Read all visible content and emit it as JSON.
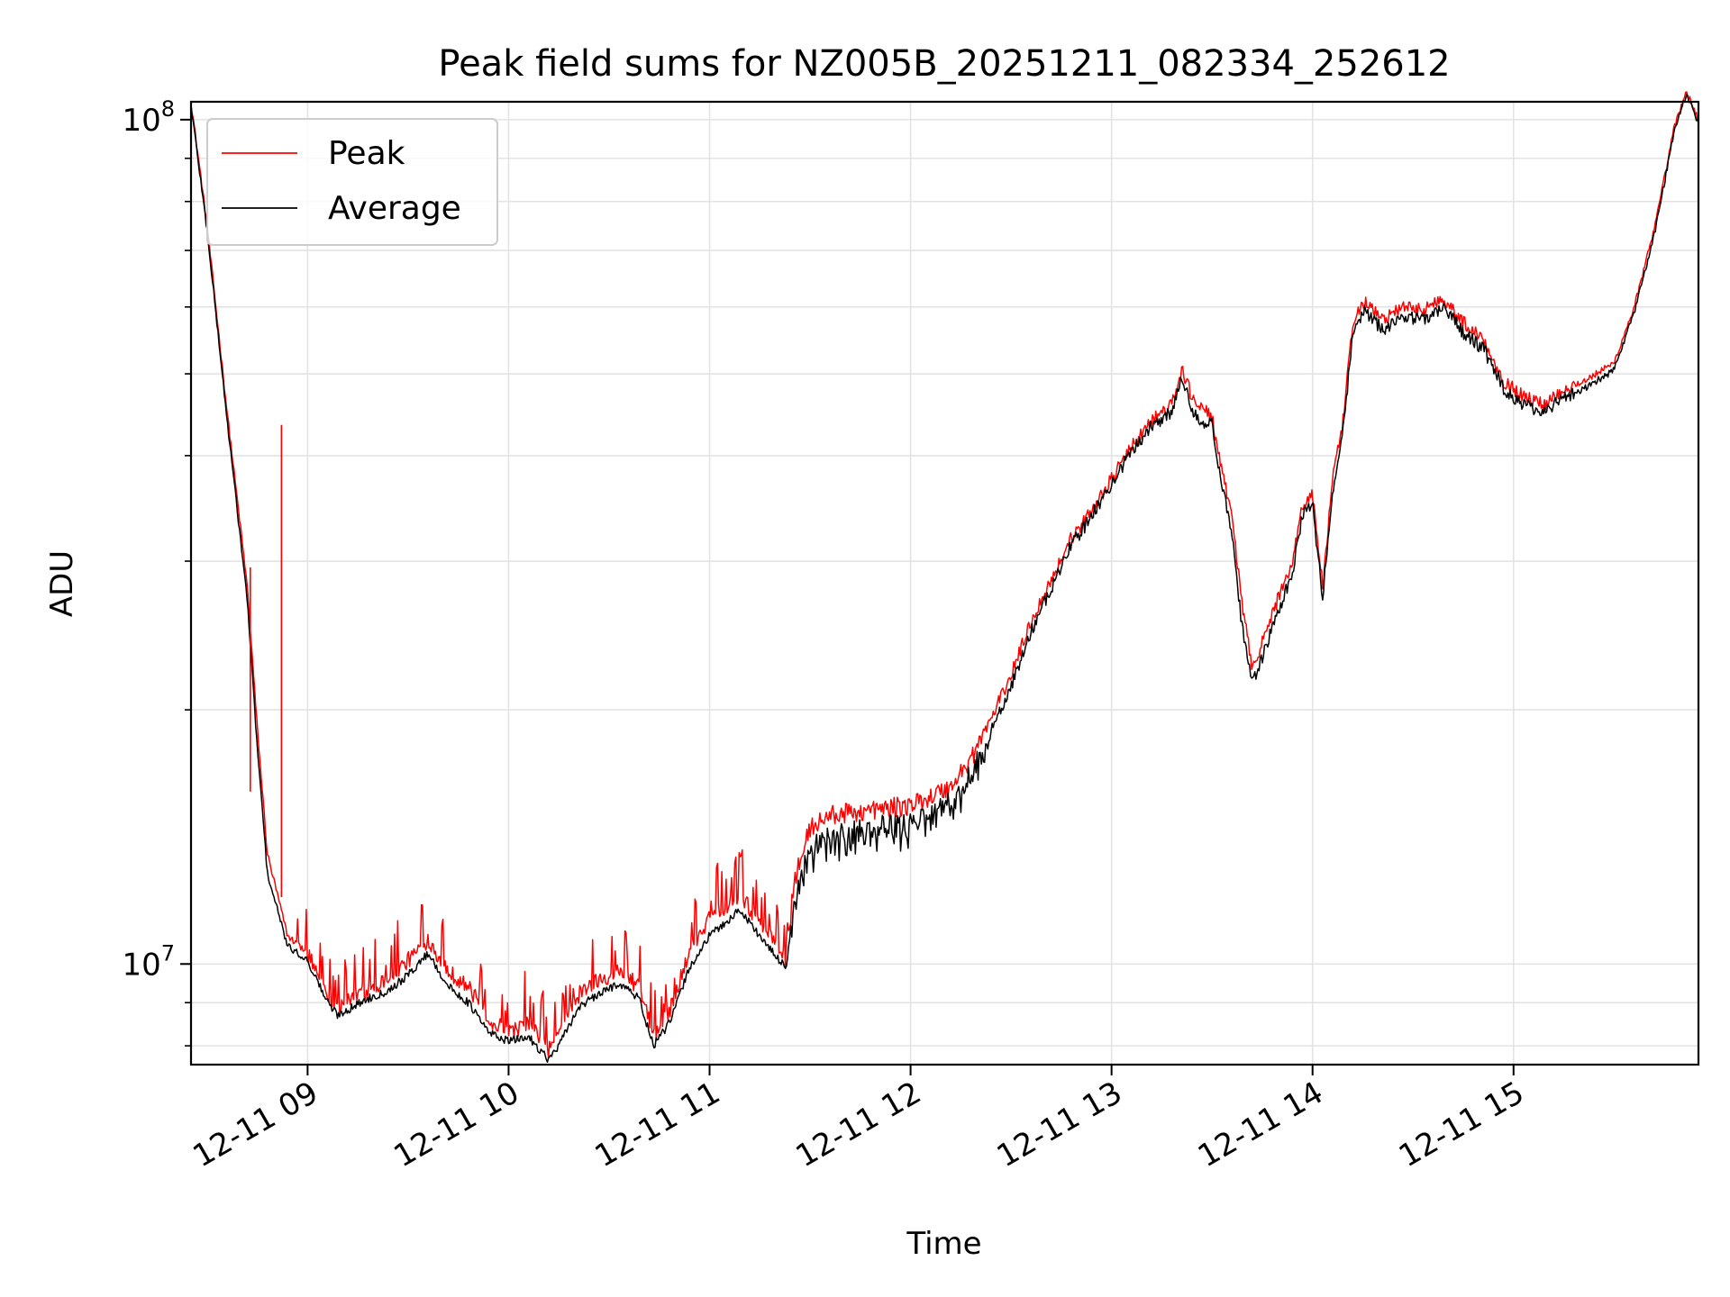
{
  "chart_data": {
    "type": "line",
    "title": "Peak field sums for NZ005B_20251211_082334_252612",
    "xlabel": "Time",
    "ylabel": "ADU",
    "yscale": "log",
    "ylim": [
      7600000,
      105000000
    ],
    "xlim_hours": [
      8.42,
      15.92
    ],
    "grid": true,
    "legend_position": "top-left",
    "x_ticks": [
      {
        "hour": 9,
        "label": "12-11 09"
      },
      {
        "hour": 10,
        "label": "12-11 10"
      },
      {
        "hour": 11,
        "label": "12-11 11"
      },
      {
        "hour": 12,
        "label": "12-11 12"
      },
      {
        "hour": 13,
        "label": "12-11 13"
      },
      {
        "hour": 14,
        "label": "12-11 14"
      },
      {
        "hour": 15,
        "label": "12-11 15"
      }
    ],
    "y_ticks": [
      {
        "value": 10000000,
        "base": "10",
        "exp": "7"
      },
      {
        "value": 100000000,
        "base": "10",
        "exp": "8"
      }
    ],
    "series": [
      {
        "name": "Peak",
        "color": "#ff0000",
        "hours": [
          8.42,
          8.5,
          8.6,
          8.7,
          8.75,
          8.8,
          8.9,
          9.0,
          9.1,
          9.15,
          9.3,
          9.4,
          9.5,
          9.6,
          9.7,
          9.8,
          9.9,
          10.0,
          10.1,
          10.2,
          10.25,
          10.35,
          10.45,
          10.55,
          10.65,
          10.72,
          10.8,
          10.9,
          11.0,
          11.1,
          11.15,
          11.25,
          11.3,
          11.38,
          11.42,
          11.5,
          11.6,
          11.8,
          12.0,
          12.2,
          12.3,
          12.4,
          12.5,
          12.6,
          12.7,
          12.8,
          12.85,
          12.9,
          13.0,
          13.1,
          13.2,
          13.3,
          13.35,
          13.4,
          13.45,
          13.5,
          13.55,
          13.6,
          13.65,
          13.7,
          13.75,
          13.8,
          13.9,
          13.95,
          14.0,
          14.05,
          14.1,
          14.15,
          14.2,
          14.25,
          14.35,
          14.45,
          14.55,
          14.65,
          14.75,
          14.85,
          14.95,
          15.05,
          15.15,
          15.25,
          15.35,
          15.5,
          15.6,
          15.7,
          15.8,
          15.86,
          15.92
        ],
        "values": [
          105000000,
          75000000,
          45000000,
          28000000,
          19000000,
          13500000,
          10800000,
          10300000,
          9200000,
          8900000,
          9300000,
          9600000,
          10100000,
          10700000,
          9800000,
          9400000,
          8600000,
          8300000,
          8500000,
          7900000,
          8300000,
          9200000,
          9600000,
          9800000,
          9400000,
          8200000,
          8800000,
          10300000,
          11400000,
          11800000,
          12100000,
          11200000,
          10800000,
          10100000,
          12500000,
          14500000,
          15000000,
          15200000,
          15400000,
          16200000,
          17500000,
          19500000,
          22000000,
          25500000,
          28500000,
          32000000,
          33000000,
          34500000,
          37500000,
          41000000,
          44000000,
          46000000,
          50500000,
          47000000,
          45500000,
          44500000,
          38000000,
          34000000,
          26500000,
          22500000,
          24000000,
          26000000,
          30000000,
          35000000,
          36000000,
          28000000,
          37500000,
          43500000,
          57000000,
          61000000,
          58000000,
          60000000,
          59500000,
          61500000,
          57500000,
          55000000,
          49000000,
          47000000,
          46000000,
          48000000,
          49000000,
          51500000,
          60000000,
          74000000,
          98000000,
          108000000,
          100000000
        ]
      },
      {
        "name": "Average",
        "color": "#000000",
        "hours": [
          8.42,
          8.5,
          8.6,
          8.7,
          8.75,
          8.8,
          8.9,
          9.0,
          9.1,
          9.15,
          9.3,
          9.4,
          9.5,
          9.6,
          9.7,
          9.8,
          9.9,
          10.0,
          10.1,
          10.2,
          10.25,
          10.35,
          10.45,
          10.55,
          10.65,
          10.72,
          10.8,
          10.9,
          11.0,
          11.1,
          11.15,
          11.25,
          11.3,
          11.38,
          11.42,
          11.5,
          11.6,
          11.8,
          12.0,
          12.2,
          12.3,
          12.4,
          12.5,
          12.6,
          12.7,
          12.8,
          12.85,
          12.9,
          13.0,
          13.1,
          13.2,
          13.3,
          13.35,
          13.4,
          13.45,
          13.5,
          13.55,
          13.6,
          13.65,
          13.7,
          13.75,
          13.8,
          13.9,
          13.95,
          14.0,
          14.05,
          14.1,
          14.15,
          14.2,
          14.25,
          14.35,
          14.45,
          14.55,
          14.65,
          14.75,
          14.85,
          14.95,
          15.05,
          15.15,
          15.25,
          15.35,
          15.5,
          15.6,
          15.7,
          15.8,
          15.86,
          15.92
        ],
        "values": [
          104000000,
          74000000,
          44000000,
          27000000,
          18000000,
          12800000,
          10500000,
          10100000,
          9000000,
          8700000,
          9100000,
          9300000,
          9700000,
          10300000,
          9400000,
          9000000,
          8300000,
          8100000,
          8200000,
          7700000,
          8000000,
          8900000,
          9200000,
          9500000,
          9100000,
          8000000,
          8500000,
          9900000,
          10800000,
          11300000,
          11600000,
          10800000,
          10400000,
          9900000,
          11800000,
          13800000,
          14200000,
          14500000,
          14800000,
          15600000,
          16800000,
          18800000,
          21300000,
          24800000,
          27800000,
          31500000,
          32500000,
          34000000,
          37000000,
          40500000,
          43500000,
          45000000,
          49500000,
          45500000,
          44000000,
          43500000,
          36500000,
          32500000,
          25000000,
          21500000,
          23000000,
          25000000,
          29000000,
          34000000,
          35000000,
          27000000,
          36500000,
          42500000,
          55500000,
          59500000,
          56500000,
          58500000,
          58000000,
          60000000,
          56000000,
          53500000,
          48000000,
          46000000,
          45000000,
          47000000,
          48000000,
          50500000,
          59000000,
          73000000,
          97000000,
          107000000,
          99000000
        ]
      }
    ]
  }
}
